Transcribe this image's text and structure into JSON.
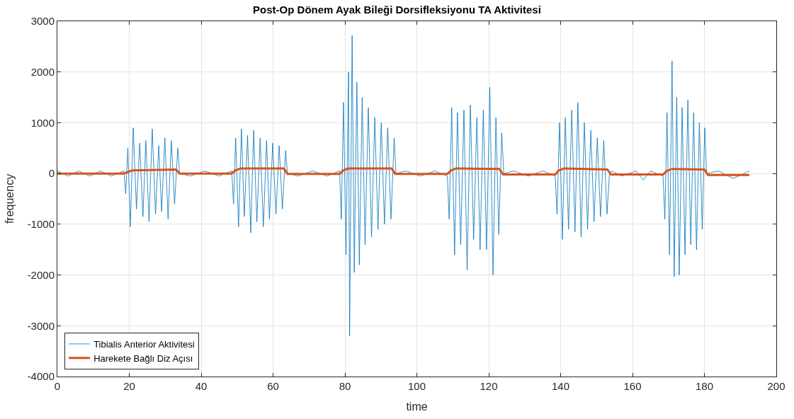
{
  "chart_data": {
    "type": "line",
    "title": "Post-Op Dönem Ayak Bileği Dorsifleksiyonu TA Aktivitesi",
    "xlabel": "time",
    "ylabel": "frequency",
    "xlim": [
      0,
      200
    ],
    "xticks": [
      0,
      20,
      40,
      60,
      80,
      100,
      120,
      140,
      160,
      180,
      200
    ],
    "ylim": [
      -4000,
      3000
    ],
    "yticks": [
      -4000,
      -3000,
      -2000,
      -1000,
      0,
      1000,
      2000,
      3000
    ],
    "grid": true,
    "legend": "bottom left",
    "series": [
      {
        "name": "Tibialis Anterior Aktivitesi",
        "color": "#0072bd",
        "x": [
          0,
          3,
          6,
          9,
          12,
          15,
          18.5,
          19,
          19.6,
          20.3,
          21.1,
          22,
          22.9,
          23.8,
          24.6,
          25.5,
          26.4,
          27.3,
          28.2,
          29,
          29.9,
          30.8,
          31.7,
          32.6,
          33.5,
          34,
          37,
          41,
          45,
          48.5,
          49,
          49.6,
          50.4,
          51.2,
          52,
          52.9,
          53.8,
          54.6,
          55.5,
          56.4,
          57.3,
          58.2,
          59,
          59.9,
          60.8,
          61.7,
          62.6,
          63.5,
          64,
          67,
          71,
          75,
          78.5,
          79,
          79.6,
          80.3,
          81,
          81.3,
          82,
          82.6,
          83.3,
          84,
          84.8,
          85.6,
          86.5,
          87.4,
          88.3,
          89.2,
          90.1,
          91,
          91.9,
          92.8,
          93.7,
          94.2,
          97,
          101,
          105,
          108.5,
          109,
          109.7,
          110.5,
          111.3,
          112.2,
          113.1,
          114,
          114.9,
          115.8,
          116.7,
          117.6,
          118.5,
          119.4,
          120.3,
          121.2,
          122,
          122.8,
          123.6,
          124.2,
          127,
          131,
          135,
          138.5,
          139,
          139.7,
          140.5,
          141.3,
          142.2,
          143.1,
          144,
          144.8,
          145.7,
          146.6,
          147.5,
          148.4,
          149.3,
          150.2,
          151.1,
          152,
          152.9,
          153.6,
          154.2,
          157,
          161,
          163,
          165,
          168.5,
          169,
          169.6,
          170.3,
          171,
          171.6,
          172.3,
          173,
          173.8,
          174.6,
          175.4,
          176.2,
          177,
          177.8,
          178.6,
          179.4,
          180.1,
          180.6,
          184,
          188,
          192.5
        ],
        "values": [
          50,
          -50,
          50,
          -50,
          50,
          -50,
          50,
          -400,
          500,
          -1050,
          900,
          -700,
          600,
          -850,
          650,
          -950,
          880,
          -800,
          550,
          -750,
          700,
          -900,
          650,
          -600,
          500,
          0,
          -50,
          50,
          -50,
          50,
          -600,
          700,
          -1050,
          880,
          -850,
          750,
          -1170,
          850,
          -950,
          700,
          -1050,
          650,
          -900,
          600,
          -800,
          550,
          -700,
          450,
          0,
          -50,
          50,
          -50,
          50,
          -900,
          1400,
          -1600,
          2000,
          -3200,
          2720,
          -1950,
          1800,
          -1800,
          1500,
          -1400,
          1300,
          -1250,
          1100,
          -1100,
          1000,
          -1000,
          900,
          -900,
          700,
          0,
          50,
          -50,
          50,
          -50,
          -900,
          1300,
          -1600,
          1200,
          -1400,
          1250,
          -1900,
          1350,
          -1300,
          1100,
          -1500,
          1250,
          -1500,
          1700,
          -2000,
          1100,
          -1200,
          800,
          0,
          50,
          -50,
          50,
          -50,
          -800,
          1000,
          -1300,
          1100,
          -1100,
          1250,
          -1150,
          1400,
          -1250,
          1000,
          -1100,
          850,
          -950,
          700,
          -850,
          650,
          -800,
          0,
          50,
          -50,
          50,
          -130,
          50,
          -50,
          -900,
          1200,
          -1600,
          2220,
          -2030,
          1500,
          -2000,
          1300,
          -1600,
          1450,
          -1400,
          1200,
          -1500,
          1000,
          -1100,
          900,
          0,
          50,
          -100,
          50
        ]
      },
      {
        "name": "Harekete Bağlı Diz Açısı",
        "color": "#d95319",
        "x": [
          0,
          10,
          18.5,
          20,
          21,
          33,
          34,
          40,
          48.5,
          49.5,
          51,
          63,
          64,
          70,
          78.5,
          79.5,
          81,
          93,
          94,
          100,
          108.5,
          109.5,
          111,
          123,
          124,
          130,
          138.5,
          139.5,
          141,
          153,
          154,
          160,
          168.5,
          169.5,
          171,
          180,
          181,
          186,
          192.5
        ],
        "values": [
          0,
          0,
          0,
          40,
          60,
          80,
          0,
          0,
          0,
          60,
          100,
          100,
          -10,
          -10,
          -10,
          60,
          100,
          100,
          -10,
          -10,
          -10,
          60,
          100,
          90,
          -20,
          -20,
          -20,
          60,
          100,
          80,
          -20,
          -20,
          -20,
          50,
          90,
          80,
          -30,
          -30,
          -30
        ]
      }
    ]
  }
}
